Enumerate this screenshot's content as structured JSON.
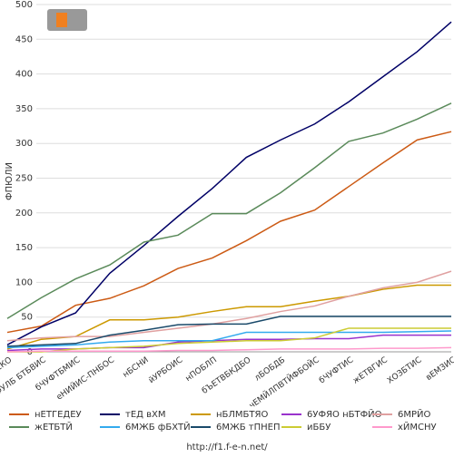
{
  "chart_data": {
    "type": "line",
    "y_label": "ФПЮЛИ",
    "footer": "http://f1.f-e-n.net/",
    "categories": [
      "вВИТЕКО",
      "уБХЪДЙФУЛБ БТБВИС",
      "бЧУФТБМИС",
      "еНИЙИС-ПНБОС",
      "нБСНИ",
      "йУРБОИС",
      "нПОБЛП",
      "бЪЕТВБКДБО",
      "лБОБДБ",
      "чЕМЙЛПВТЙФБОЙС",
      "бЧУФТИС",
      "жЕТВГИС",
      "ХОЗБТИС",
      "вЕМЗИС"
    ],
    "ylim": [
      0,
      500
    ],
    "yticks": [
      0,
      50,
      100,
      150,
      200,
      250,
      300,
      350,
      400,
      450,
      500
    ],
    "grid": true,
    "series": [
      {
        "name": "нЕТГЕДЕУ",
        "color": "#cc5a14",
        "values": [
          28,
          37,
          67,
          77,
          95,
          120,
          135,
          160,
          188,
          204,
          238,
          272,
          305,
          317
        ]
      },
      {
        "name": "тЕД вХМ",
        "color": "#000066",
        "values": [
          10,
          36,
          56,
          113,
          153,
          195,
          235,
          280,
          305,
          328,
          360,
          396,
          432,
          475
        ]
      },
      {
        "name": "нБЛМБТЯО",
        "color": "#cc9900",
        "values": [
          4,
          18,
          22,
          46,
          46,
          50,
          58,
          65,
          65,
          73,
          80,
          90,
          96,
          96
        ]
      },
      {
        "name": "6УФЯО нБТФЙО",
        "color": "#9933cc",
        "values": [
          2,
          4,
          4,
          6,
          6,
          14,
          16,
          18,
          18,
          19,
          19,
          24,
          24,
          24
        ]
      },
      {
        "name": "6МРЙО",
        "color": "#e0a0a0",
        "values": [
          16,
          20,
          22,
          22,
          28,
          34,
          40,
          48,
          58,
          66,
          80,
          92,
          100,
          116
        ]
      },
      {
        "name": "жЕТБТЙ",
        "color": "#5a8a5a",
        "values": [
          48,
          78,
          105,
          125,
          158,
          168,
          199,
          199,
          229,
          265,
          303,
          315,
          335,
          358
        ]
      },
      {
        "name": "6МЖБ фБХТЙ",
        "color": "#33aaee",
        "values": [
          6,
          8,
          10,
          14,
          16,
          16,
          16,
          28,
          28,
          28,
          28,
          28,
          29,
          30
        ]
      },
      {
        "name": "6МЖБ тПНЕП",
        "color": "#1a4a6a",
        "values": [
          8,
          10,
          12,
          24,
          31,
          39,
          40,
          40,
          51,
          51,
          51,
          51,
          51,
          51
        ]
      },
      {
        "name": "иББУ",
        "color": "#cccc33",
        "values": [
          0,
          0,
          4,
          6,
          8,
          12,
          14,
          16,
          16,
          20,
          34,
          34,
          34,
          34
        ]
      },
      {
        "name": "хЙМСНУ",
        "color": "#ff99cc",
        "values": [
          0,
          1,
          1,
          1,
          1,
          2,
          2,
          3,
          4,
          4,
          4,
          5,
          5,
          6
        ]
      }
    ]
  }
}
